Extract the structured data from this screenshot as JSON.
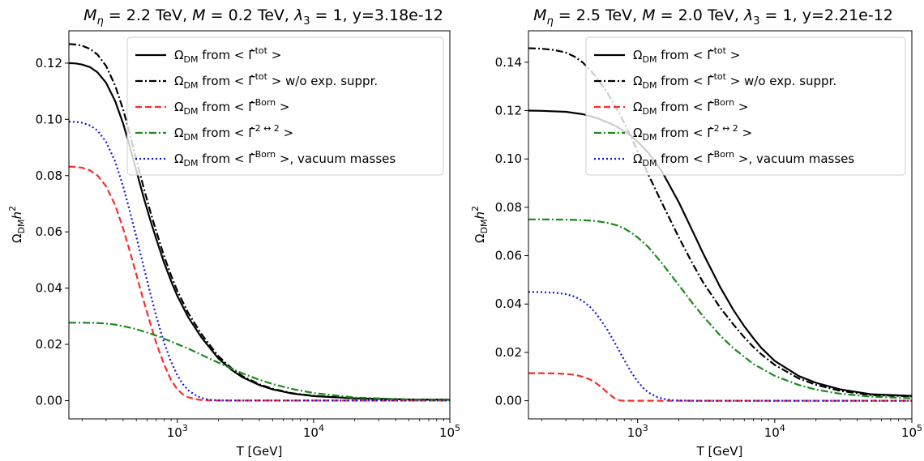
{
  "chart_data": [
    {
      "type": "line",
      "title": "M_η = 2.2 TeV, M = 0.2 TeV, λ_3 = 1, y=3.18e-12",
      "title_parts": {
        "m_eta_value": "2.2 TeV",
        "m_value": "0.2 TeV",
        "lambda3_value": "1",
        "y_text": "y=3.18e-12"
      },
      "xlabel": "T [GeV]",
      "ylabel": "Ω_DM h^2",
      "xscale": "log",
      "xlim": [
        160,
        100000
      ],
      "ylim": [
        -0.0065,
        0.1315
      ],
      "xticks": [
        {
          "value": 1000,
          "label": "10^3"
        },
        {
          "value": 10000,
          "label": "10^4"
        },
        {
          "value": 100000,
          "label": "10^5"
        }
      ],
      "yticks": [
        0.0,
        0.02,
        0.04,
        0.06,
        0.08,
        0.1,
        0.12
      ],
      "ytick_labels": [
        "0.00",
        "0.02",
        "0.04",
        "0.06",
        "0.08",
        "0.10",
        "0.12"
      ],
      "legend_position": "top-right",
      "grid": false,
      "series": [
        {
          "name": "Ω_DM from <Γ̂^tot>",
          "legend": {
            "pre": "Ω",
            "sub": "DM",
            "mid": " from  < ",
            "hat": "Γ",
            "sup": "tot",
            "post": " >"
          },
          "color": "#000000",
          "style": "solid",
          "x": [
            160,
            180,
            200,
            230,
            260,
            300,
            350,
            400,
            450,
            500,
            560,
            630,
            700,
            800,
            900,
            1000,
            1200,
            1500,
            2000,
            2500,
            3000,
            4000,
            5000,
            7000,
            10000,
            20000,
            50000,
            100000
          ],
          "y": [
            0.12,
            0.1199,
            0.1195,
            0.1185,
            0.1167,
            0.113,
            0.1065,
            0.0985,
            0.09,
            0.0818,
            0.073,
            0.0645,
            0.0575,
            0.049,
            0.0425,
            0.0372,
            0.0297,
            0.0225,
            0.015,
            0.0109,
            0.0083,
            0.0055,
            0.004,
            0.0025,
            0.0016,
            0.0008,
            0.0004,
            0.0003
          ]
        },
        {
          "name": "Ω_DM from <Γ̂^tot> w/o exp. suppr.",
          "legend": {
            "pre": "Ω",
            "sub": "DM",
            "mid": " from  < ",
            "hat": "Γ",
            "sup": "tot",
            "post": " >  w/o exp. suppr."
          },
          "color": "#000000",
          "style": "dashdot",
          "x": [
            160,
            180,
            200,
            230,
            260,
            300,
            350,
            400,
            450,
            500,
            560,
            630,
            700,
            800,
            900,
            1000,
            1200,
            1500,
            2000,
            2500,
            3000,
            4000,
            5000,
            7000,
            10000,
            20000,
            50000,
            100000
          ],
          "y": [
            0.1268,
            0.1266,
            0.1262,
            0.125,
            0.123,
            0.119,
            0.112,
            0.1035,
            0.0945,
            0.0858,
            0.0765,
            0.0675,
            0.0602,
            0.0513,
            0.0445,
            0.039,
            0.0312,
            0.0237,
            0.0158,
            0.0115,
            0.0087,
            0.0058,
            0.0042,
            0.0026,
            0.0017,
            0.0008,
            0.0004,
            0.0003
          ]
        },
        {
          "name": "Ω_DM from <Γ̂^Born>",
          "legend": {
            "pre": "Ω",
            "sub": "DM",
            "mid": " from  < ",
            "hat": "Γ",
            "sup": "Born",
            "post": " >"
          },
          "color": "#ff2a2a",
          "style": "dashed",
          "x": [
            160,
            180,
            200,
            230,
            260,
            300,
            350,
            400,
            450,
            500,
            560,
            630,
            700,
            800,
            900,
            1000,
            1100,
            1200,
            1400,
            1600,
            2000,
            3000,
            5000,
            10000,
            100000
          ],
          "y": [
            0.0832,
            0.0831,
            0.0828,
            0.0818,
            0.08,
            0.0762,
            0.0695,
            0.0612,
            0.0528,
            0.0448,
            0.0362,
            0.0278,
            0.0205,
            0.0128,
            0.0073,
            0.004,
            0.0022,
            0.0012,
            0.0004,
            0.0001,
            0.0,
            0.0,
            0.0,
            0.0,
            0.0
          ]
        },
        {
          "name": "Ω_DM from <Γ̂^2↔2>",
          "legend": {
            "pre": "Ω",
            "sub": "DM",
            "mid": " from  < ",
            "hat": "Γ",
            "sup": "2 ↔ 2",
            "post": " >"
          },
          "color": "#1a8a1a",
          "style": "dashdot",
          "x": [
            160,
            200,
            250,
            300,
            350,
            400,
            500,
            600,
            700,
            800,
            1000,
            1200,
            1500,
            2000,
            3000,
            4000,
            5000,
            7000,
            10000,
            20000,
            50000,
            100000
          ],
          "y": [
            0.0277,
            0.0277,
            0.0276,
            0.0274,
            0.027,
            0.0265,
            0.0254,
            0.0242,
            0.0231,
            0.022,
            0.0201,
            0.0185,
            0.0163,
            0.0135,
            0.0097,
            0.0074,
            0.0059,
            0.0041,
            0.0027,
            0.0011,
            0.0004,
            0.0002
          ]
        },
        {
          "name": "Ω_DM from <Γ̂^Born>, vacuum masses",
          "legend": {
            "pre": "Ω",
            "sub": "DM",
            "mid": " from  < ",
            "hat": "Γ",
            "sup": "Born",
            "post": " >, vacuum masses"
          },
          "color": "#1515e0",
          "style": "dotted",
          "x": [
            160,
            180,
            200,
            230,
            260,
            300,
            350,
            400,
            450,
            500,
            560,
            630,
            700,
            800,
            900,
            1000,
            1100,
            1200,
            1400,
            1600,
            1800,
            2000,
            2500,
            3000,
            5000,
            100000
          ],
          "y": [
            0.0992,
            0.0991,
            0.0988,
            0.0978,
            0.096,
            0.092,
            0.085,
            0.0762,
            0.067,
            0.0582,
            0.0485,
            0.0385,
            0.03,
            0.0205,
            0.0138,
            0.009,
            0.0058,
            0.0037,
            0.0015,
            0.0006,
            0.0002,
            0.0001,
            0.0,
            0.0,
            0.0,
            0.0
          ]
        }
      ]
    },
    {
      "type": "line",
      "title": "M_η = 2.5 TeV, M = 2.0 TeV, λ_3 = 1, y=2.21e-12",
      "title_parts": {
        "m_eta_value": "2.5 TeV",
        "m_value": "2.0 TeV",
        "lambda3_value": "1",
        "y_text": "y=2.21e-12"
      },
      "xlabel": "T [GeV]",
      "ylabel": "Ω_DM h^2",
      "xscale": "log",
      "xlim": [
        160,
        100000
      ],
      "ylim": [
        -0.0075,
        0.153
      ],
      "xticks": [
        {
          "value": 1000,
          "label": "10^3"
        },
        {
          "value": 10000,
          "label": "10^4"
        },
        {
          "value": 100000,
          "label": "10^5"
        }
      ],
      "yticks": [
        0.0,
        0.02,
        0.04,
        0.06,
        0.08,
        0.1,
        0.12,
        0.14
      ],
      "ytick_labels": [
        "0.00",
        "0.02",
        "0.04",
        "0.06",
        "0.08",
        "0.10",
        "0.12",
        "0.14"
      ],
      "legend_position": "top-right",
      "grid": false,
      "series": [
        {
          "name": "Ω_DM from <Γ̂^tot>",
          "legend": {
            "pre": "Ω",
            "sub": "DM",
            "mid": " from  < ",
            "hat": "Γ",
            "sup": "tot",
            "post": " >"
          },
          "color": "#000000",
          "style": "solid",
          "x": [
            160,
            200,
            300,
            400,
            500,
            600,
            700,
            800,
            900,
            1000,
            1200,
            1500,
            2000,
            2500,
            3000,
            4000,
            5000,
            6000,
            7000,
            8000,
            10000,
            15000,
            20000,
            30000,
            50000,
            100000
          ],
          "y": [
            0.12,
            0.1199,
            0.1195,
            0.1185,
            0.117,
            0.1152,
            0.1135,
            0.1115,
            0.1095,
            0.1072,
            0.1025,
            0.095,
            0.082,
            0.0705,
            0.061,
            0.047,
            0.0375,
            0.0308,
            0.0258,
            0.0218,
            0.0165,
            0.0102,
            0.0074,
            0.0047,
            0.0027,
            0.002
          ]
        },
        {
          "name": "Ω_DM from <Γ̂^tot> w/o exp. suppr.",
          "legend": {
            "pre": "Ω",
            "sub": "DM",
            "mid": " from  < ",
            "hat": "Γ",
            "sup": "tot",
            "post": " >  w/o exp. suppr."
          },
          "color": "#000000",
          "style": "dashdot",
          "x": [
            160,
            200,
            250,
            300,
            350,
            400,
            500,
            600,
            700,
            800,
            900,
            1000,
            1200,
            1500,
            2000,
            2500,
            3000,
            4000,
            5000,
            6000,
            7000,
            8000,
            10000,
            15000,
            20000,
            30000,
            50000,
            100000
          ],
          "y": [
            0.1458,
            0.1456,
            0.145,
            0.144,
            0.1422,
            0.1398,
            0.134,
            0.1275,
            0.121,
            0.1148,
            0.1088,
            0.1032,
            0.0935,
            0.082,
            0.0675,
            0.057,
            0.049,
            0.0385,
            0.0315,
            0.0262,
            0.0222,
            0.0192,
            0.0148,
            0.0092,
            0.0066,
            0.0041,
            0.0024,
            0.0018
          ]
        },
        {
          "name": "Ω_DM from <Γ̂^Born>",
          "legend": {
            "pre": "Ω",
            "sub": "DM",
            "mid": " from  < ",
            "hat": "Γ",
            "sup": "Born",
            "post": " >"
          },
          "color": "#ff2a2a",
          "style": "dashed",
          "x": [
            160,
            200,
            250,
            300,
            350,
            400,
            450,
            500,
            550,
            600,
            650,
            700,
            750,
            800,
            1000,
            2000,
            100000
          ],
          "y": [
            0.0114,
            0.0114,
            0.0113,
            0.0111,
            0.0107,
            0.0099,
            0.0088,
            0.0072,
            0.0054,
            0.0035,
            0.0018,
            0.0006,
            0.0001,
            0.0,
            0.0,
            0.0,
            0.0
          ]
        },
        {
          "name": "Ω_DM from <Γ̂^2↔2>",
          "legend": {
            "pre": "Ω",
            "sub": "DM",
            "mid": " from  < ",
            "hat": "Γ",
            "sup": "2 ↔ 2",
            "post": " >"
          },
          "color": "#1a8a1a",
          "style": "dashdot",
          "x": [
            160,
            200,
            300,
            400,
            500,
            600,
            700,
            800,
            900,
            1000,
            1200,
            1500,
            2000,
            2500,
            3000,
            4000,
            5000,
            7000,
            10000,
            15000,
            20000,
            30000,
            50000,
            100000
          ],
          "y": [
            0.075,
            0.075,
            0.0749,
            0.0747,
            0.0743,
            0.0736,
            0.0726,
            0.0712,
            0.0695,
            0.0676,
            0.0635,
            0.057,
            0.0478,
            0.0405,
            0.035,
            0.027,
            0.0217,
            0.0152,
            0.0103,
            0.0065,
            0.0046,
            0.0029,
            0.0017,
            0.001
          ]
        },
        {
          "name": "Ω_DM from <Γ̂^Born>, vacuum masses",
          "legend": {
            "pre": "Ω",
            "sub": "DM",
            "mid": " from  < ",
            "hat": "Γ",
            "sup": "Born",
            "post": " >, vacuum masses"
          },
          "color": "#1515e0",
          "style": "dotted",
          "x": [
            160,
            200,
            250,
            300,
            350,
            400,
            450,
            500,
            600,
            700,
            800,
            900,
            1000,
            1100,
            1200,
            1400,
            1600,
            1800,
            2000,
            2500,
            3000,
            5000,
            100000
          ],
          "y": [
            0.045,
            0.0449,
            0.0447,
            0.0441,
            0.043,
            0.0412,
            0.0388,
            0.036,
            0.0295,
            0.0228,
            0.0168,
            0.0118,
            0.008,
            0.0053,
            0.0034,
            0.0014,
            0.0006,
            0.0002,
            0.0001,
            0.0,
            0.0,
            0.0,
            0.0
          ]
        }
      ]
    }
  ]
}
